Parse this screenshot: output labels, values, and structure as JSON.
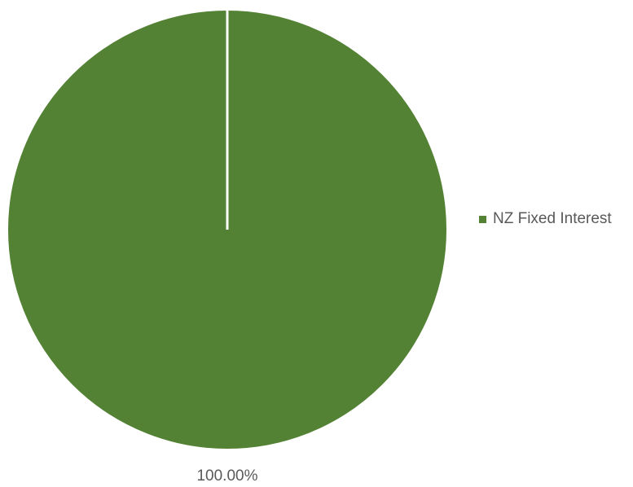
{
  "chart_data": {
    "type": "pie",
    "title": "",
    "slices": [
      {
        "label": "NZ Fixed Interest",
        "value": 100.0,
        "data_label": "100.00%",
        "color": "#548235"
      }
    ],
    "legend": {
      "position": "right",
      "entries": [
        "NZ Fixed Interest"
      ]
    }
  }
}
